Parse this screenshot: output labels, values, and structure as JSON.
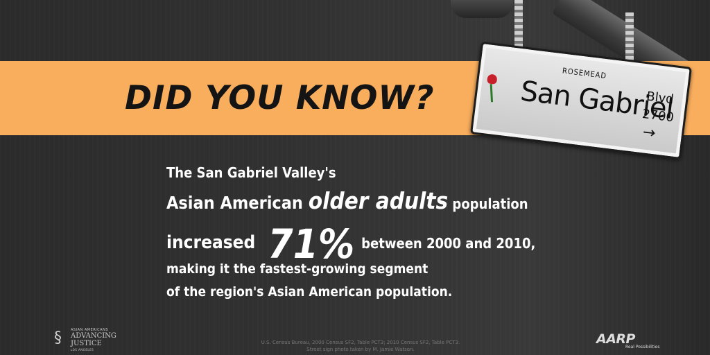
{
  "headline": "DID YOU KNOW?",
  "sign": {
    "small_text": "ROSEMEAD",
    "name": "San Gabriel",
    "suffix": "Blvd",
    "number": "2700",
    "arrow": "→"
  },
  "body": {
    "line1": "The San Gabriel Valley's",
    "line2_a": "Asian American ",
    "line2_em": "older adults",
    "line2_b": " population",
    "line3_a": "increased",
    "line3_big": "71%",
    "line3_b": "between 2000 and 2010,",
    "line4": "making it the fastest-growing segment",
    "line5": "of the region's Asian American population."
  },
  "logos": {
    "left": {
      "line1": "ASIAN AMERICANS",
      "line2": "ADVANCING",
      "line3": "JUSTICE",
      "line4": "LOS ANGELES"
    },
    "right": {
      "name": "AARP",
      "tagline": "Real Possibilities"
    }
  },
  "credits": {
    "line1": "U.S. Census Bureau, 2000 Census SF2, Table PCT3; 2010 Census SF2, Table PCT3.",
    "line2": "Street sign photo taken by M. Jamie Watson."
  }
}
